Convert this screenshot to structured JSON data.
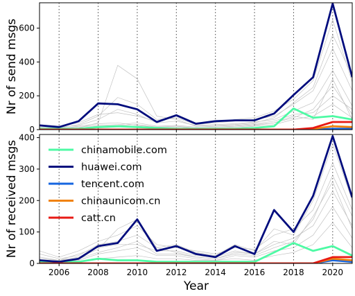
{
  "chart_data": {
    "type": "line",
    "xlabel": "Year",
    "x": [
      2005,
      2006,
      2007,
      2008,
      2009,
      2010,
      2011,
      2012,
      2013,
      2014,
      2015,
      2016,
      2017,
      2018,
      2019,
      2020,
      2021
    ],
    "xticks": [
      2006,
      2008,
      2010,
      2012,
      2014,
      2016,
      2018,
      2020
    ],
    "xlim": [
      2005,
      2021
    ],
    "vlines": [
      2006,
      2008,
      2010,
      2012,
      2014,
      2016,
      2018,
      2020
    ],
    "grid": false,
    "legend": {
      "placement": "top-left of lower panel",
      "entries": [
        {
          "label": "chinamobile.com",
          "color": "#4dfaa4"
        },
        {
          "label": "huawei.com",
          "color": "#000c7d"
        },
        {
          "label": "tencent.com",
          "color": "#1565e0"
        },
        {
          "label": "chinaunicom.cn",
          "color": "#f0820e"
        },
        {
          "label": "catt.cn",
          "color": "#e81a14"
        }
      ]
    },
    "panels": [
      {
        "ylabel": "Nr of send msgs",
        "ylim": [
          0,
          750
        ],
        "yticks": [
          0,
          200,
          400,
          600
        ],
        "series": [
          {
            "name": "chinamobile.com",
            "color": "#4dfaa4",
            "values": [
              5,
              5,
              5,
              15,
              20,
              15,
              10,
              5,
              5,
              5,
              5,
              10,
              20,
              125,
              70,
              80,
              60
            ]
          },
          {
            "name": "huawei.com",
            "color": "#000c7d",
            "values": [
              25,
              15,
              50,
              155,
              150,
              120,
              45,
              85,
              35,
              50,
              55,
              55,
              95,
              205,
              310,
              745,
              310
            ]
          },
          {
            "name": "tencent.com",
            "color": "#1565e0",
            "values": [
              0,
              0,
              0,
              0,
              0,
              0,
              0,
              0,
              0,
              0,
              0,
              0,
              0,
              0,
              0,
              5,
              5
            ]
          },
          {
            "name": "chinaunicom.cn",
            "color": "#f0820e",
            "values": [
              0,
              0,
              0,
              0,
              0,
              0,
              0,
              0,
              0,
              0,
              0,
              0,
              0,
              0,
              5,
              20,
              15
            ]
          },
          {
            "name": "catt.cn",
            "color": "#e81a14",
            "values": [
              0,
              0,
              0,
              0,
              0,
              0,
              0,
              0,
              0,
              0,
              0,
              0,
              0,
              0,
              10,
              45,
              45
            ]
          }
        ],
        "background_series": [
          [
            10,
            5,
            20,
            35,
            40,
            25,
            15,
            20,
            10,
            15,
            20,
            30,
            40,
            70,
            120,
            260,
            90
          ],
          [
            20,
            15,
            25,
            60,
            120,
            90,
            40,
            50,
            25,
            30,
            35,
            45,
            60,
            110,
            160,
            350,
            140
          ],
          [
            5,
            10,
            30,
            80,
            190,
            150,
            60,
            70,
            30,
            40,
            50,
            60,
            80,
            150,
            230,
            480,
            230
          ],
          [
            0,
            5,
            10,
            40,
            380,
            300,
            80,
            60,
            20,
            25,
            30,
            40,
            70,
            160,
            250,
            560,
            320
          ],
          [
            15,
            10,
            15,
            25,
            30,
            40,
            20,
            25,
            15,
            20,
            25,
            35,
            50,
            90,
            100,
            200,
            120
          ],
          [
            0,
            0,
            5,
            10,
            15,
            20,
            10,
            10,
            5,
            10,
            10,
            20,
            30,
            60,
            80,
            150,
            70
          ],
          [
            30,
            20,
            40,
            90,
            100,
            80,
            50,
            90,
            40,
            45,
            60,
            70,
            110,
            180,
            290,
            650,
            280
          ],
          [
            5,
            5,
            10,
            20,
            25,
            30,
            15,
            15,
            10,
            10,
            15,
            25,
            40,
            80,
            60,
            300,
            60
          ]
        ]
      },
      {
        "ylabel": "Nr of received msgs",
        "ylim": [
          0,
          410
        ],
        "yticks": [
          0,
          100,
          200,
          300,
          400
        ],
        "series": [
          {
            "name": "chinamobile.com",
            "color": "#4dfaa4",
            "values": [
              5,
              5,
              5,
              15,
              10,
              10,
              5,
              5,
              5,
              5,
              5,
              5,
              35,
              65,
              40,
              55,
              25
            ]
          },
          {
            "name": "huawei.com",
            "color": "#000c7d",
            "values": [
              10,
              5,
              15,
              55,
              65,
              140,
              40,
              55,
              30,
              20,
              55,
              30,
              170,
              100,
              215,
              405,
              210
            ]
          },
          {
            "name": "tencent.com",
            "color": "#1565e0",
            "values": [
              0,
              0,
              0,
              0,
              0,
              0,
              0,
              0,
              0,
              0,
              0,
              0,
              0,
              0,
              0,
              10,
              5
            ]
          },
          {
            "name": "chinaunicom.cn",
            "color": "#f0820e",
            "values": [
              0,
              0,
              0,
              0,
              0,
              0,
              0,
              0,
              0,
              0,
              0,
              0,
              0,
              0,
              0,
              15,
              10
            ]
          },
          {
            "name": "catt.cn",
            "color": "#e81a14",
            "values": [
              0,
              0,
              0,
              0,
              0,
              0,
              0,
              0,
              0,
              0,
              0,
              0,
              0,
              0,
              0,
              20,
              20
            ]
          }
        ],
        "background_series": [
          [
            20,
            10,
            30,
            50,
            60,
            60,
            40,
            40,
            25,
            20,
            40,
            30,
            60,
            80,
            120,
            230,
            120
          ],
          [
            40,
            20,
            40,
            70,
            90,
            120,
            60,
            50,
            40,
            30,
            50,
            45,
            90,
            110,
            170,
            320,
            170
          ],
          [
            5,
            10,
            20,
            45,
            110,
            140,
            50,
            35,
            20,
            15,
            30,
            25,
            50,
            70,
            140,
            280,
            150
          ],
          [
            10,
            5,
            10,
            30,
            40,
            50,
            25,
            25,
            15,
            10,
            25,
            20,
            40,
            50,
            90,
            180,
            80
          ],
          [
            30,
            15,
            25,
            60,
            70,
            90,
            50,
            60,
            35,
            25,
            60,
            40,
            110,
            90,
            200,
            380,
            200
          ],
          [
            0,
            0,
            5,
            15,
            20,
            25,
            15,
            15,
            10,
            10,
            15,
            10,
            25,
            35,
            60,
            130,
            50
          ],
          [
            15,
            10,
            15,
            35,
            50,
            70,
            30,
            30,
            20,
            15,
            35,
            30,
            70,
            60,
            150,
            260,
            110
          ]
        ]
      }
    ]
  }
}
